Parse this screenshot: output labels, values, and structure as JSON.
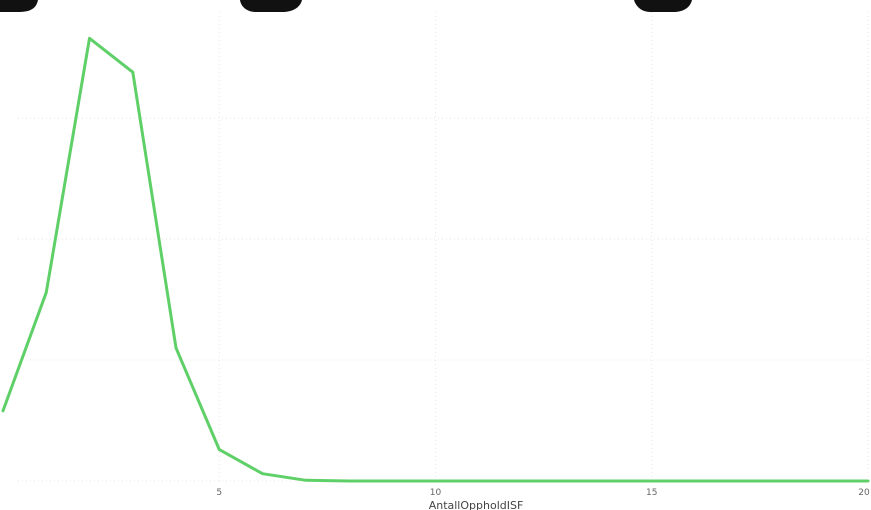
{
  "chart_data": {
    "type": "line",
    "x": [
      0,
      1,
      2,
      3,
      4,
      5,
      6,
      7,
      8,
      9,
      10,
      11,
      12,
      13,
      14,
      15,
      16,
      17,
      18,
      19,
      20
    ],
    "series": [
      {
        "color": "#5fd068",
        "values": [
          0.29,
          0.78,
          1.83,
          1.69,
          0.55,
          0.13,
          0.03,
          0.003,
          0.0,
          0.0,
          0.0,
          0.0,
          0.0,
          0.0,
          0.0,
          0.0,
          0.0,
          0.0,
          0.0,
          0.0,
          0.0
        ]
      }
    ],
    "xlabel": "AntallOppholdISF",
    "xticks": [
      5,
      10,
      15,
      20
    ],
    "xlim": [
      0,
      20
    ],
    "ylim": [
      0,
      1.98
    ],
    "grid": true
  }
}
